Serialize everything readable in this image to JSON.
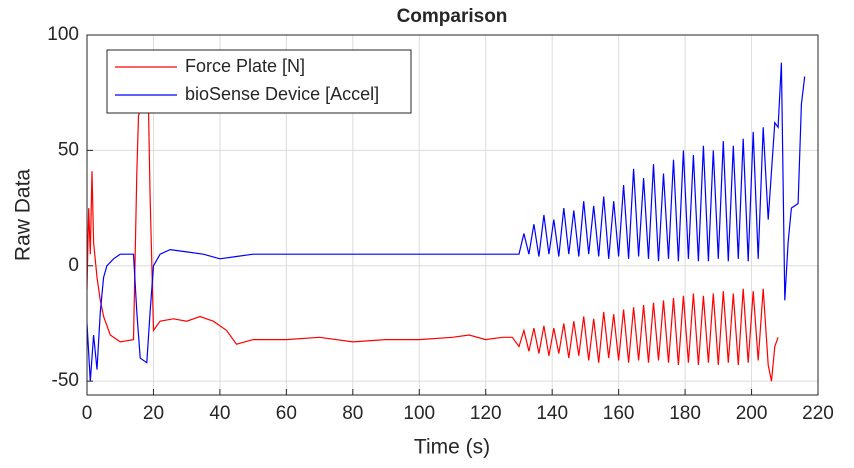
{
  "chart_data": {
    "type": "line",
    "title": "Comparison",
    "x_label": "Time (s)",
    "y_label": "Raw Data",
    "xlim": [
      0,
      220
    ],
    "xticks": [
      0,
      20,
      40,
      60,
      80,
      100,
      120,
      140,
      160,
      180,
      200,
      220
    ],
    "ylim": [
      -56,
      100
    ],
    "yticks": [
      -50,
      0,
      50,
      100
    ],
    "grid": true,
    "legend": "upper-left",
    "series": [
      {
        "name": "Force Plate [N]",
        "color": "#ff0000",
        "x": [
          0,
          0.5,
          1,
          1.5,
          2,
          3,
          4,
          5,
          7,
          10,
          14,
          15,
          15.5,
          17,
          18.5,
          19,
          20,
          22,
          26,
          30,
          34,
          38,
          42,
          45,
          50,
          60,
          70,
          80,
          90,
          100,
          110,
          115,
          120,
          125,
          128,
          130,
          131.5,
          133,
          134.5,
          136,
          137.5,
          139,
          140.5,
          142,
          143.5,
          145,
          146.5,
          148,
          149.5,
          151,
          152.5,
          154,
          155.5,
          157,
          158.5,
          160,
          161.5,
          163,
          164.5,
          166,
          167.5,
          169,
          170.5,
          172,
          173.5,
          175,
          176.5,
          178,
          179.5,
          181,
          182.5,
          184,
          185.5,
          187,
          188.5,
          190,
          191.5,
          193,
          194.5,
          196,
          197.5,
          199,
          200.5,
          202,
          203.5,
          205,
          206,
          207,
          208
        ],
        "values": [
          -10,
          25,
          5,
          41,
          10,
          -5,
          -15,
          -22,
          -30,
          -33,
          -32,
          40,
          65,
          72,
          68,
          30,
          -28,
          -24,
          -23,
          -24,
          -22,
          -24,
          -28,
          -34,
          -32,
          -32,
          -31,
          -33,
          -32,
          -32,
          -31,
          -30,
          -32,
          -31,
          -31,
          -35,
          -28,
          -37,
          -27,
          -38,
          -26,
          -39,
          -27,
          -38,
          -25,
          -40,
          -24,
          -39,
          -22,
          -41,
          -23,
          -42,
          -20,
          -40,
          -21,
          -41,
          -19,
          -42,
          -18,
          -41,
          -17,
          -42,
          -16,
          -41,
          -15,
          -42,
          -14,
          -43,
          -13,
          -42,
          -12,
          -43,
          -13,
          -42,
          -12,
          -43,
          -11,
          -42,
          -12,
          -43,
          -10,
          -42,
          -11,
          -41,
          -10,
          -43,
          -50,
          -35,
          -31
        ]
      },
      {
        "name": "bioSense Device [Accel]",
        "color": "#0000ff",
        "x": [
          0,
          1,
          2,
          3,
          4,
          5,
          6,
          8,
          10,
          14,
          15,
          16,
          18,
          19,
          20,
          22,
          25,
          30,
          35,
          40,
          45,
          50,
          60,
          70,
          80,
          90,
          100,
          110,
          120,
          128,
          130,
          131.5,
          133,
          134.5,
          136,
          137.5,
          139,
          140.5,
          142,
          143.5,
          145,
          146.5,
          148,
          149.5,
          151,
          152.5,
          154,
          155.5,
          157,
          158.5,
          160,
          161.5,
          163,
          164.5,
          166,
          167.5,
          169,
          170.5,
          172,
          173.5,
          175,
          176.5,
          178,
          179.5,
          181,
          182.5,
          184,
          185.5,
          187,
          188.5,
          190,
          191.5,
          193,
          194.5,
          196,
          197.5,
          199,
          200.5,
          202,
          203.5,
          205,
          207,
          208,
          209,
          210,
          211,
          212,
          214,
          215,
          216
        ],
        "values": [
          -25,
          -50,
          -30,
          -45,
          -20,
          -5,
          0,
          3,
          5,
          5,
          -20,
          -40,
          -42,
          -20,
          0,
          5,
          7,
          6,
          5,
          3,
          4,
          5,
          5,
          5,
          5,
          5,
          5,
          5,
          5,
          5,
          5,
          14,
          5,
          18,
          4,
          22,
          5,
          20,
          4,
          25,
          5,
          24,
          4,
          28,
          5,
          26,
          4,
          30,
          3,
          28,
          4,
          35,
          3,
          42,
          4,
          38,
          3,
          44,
          2,
          40,
          3,
          46,
          2,
          50,
          3,
          48,
          2,
          52,
          2,
          50,
          3,
          54,
          2,
          52,
          3,
          55,
          2,
          58,
          3,
          60,
          20,
          62,
          60,
          88,
          -15,
          10,
          25,
          27,
          70,
          82
        ]
      }
    ]
  }
}
